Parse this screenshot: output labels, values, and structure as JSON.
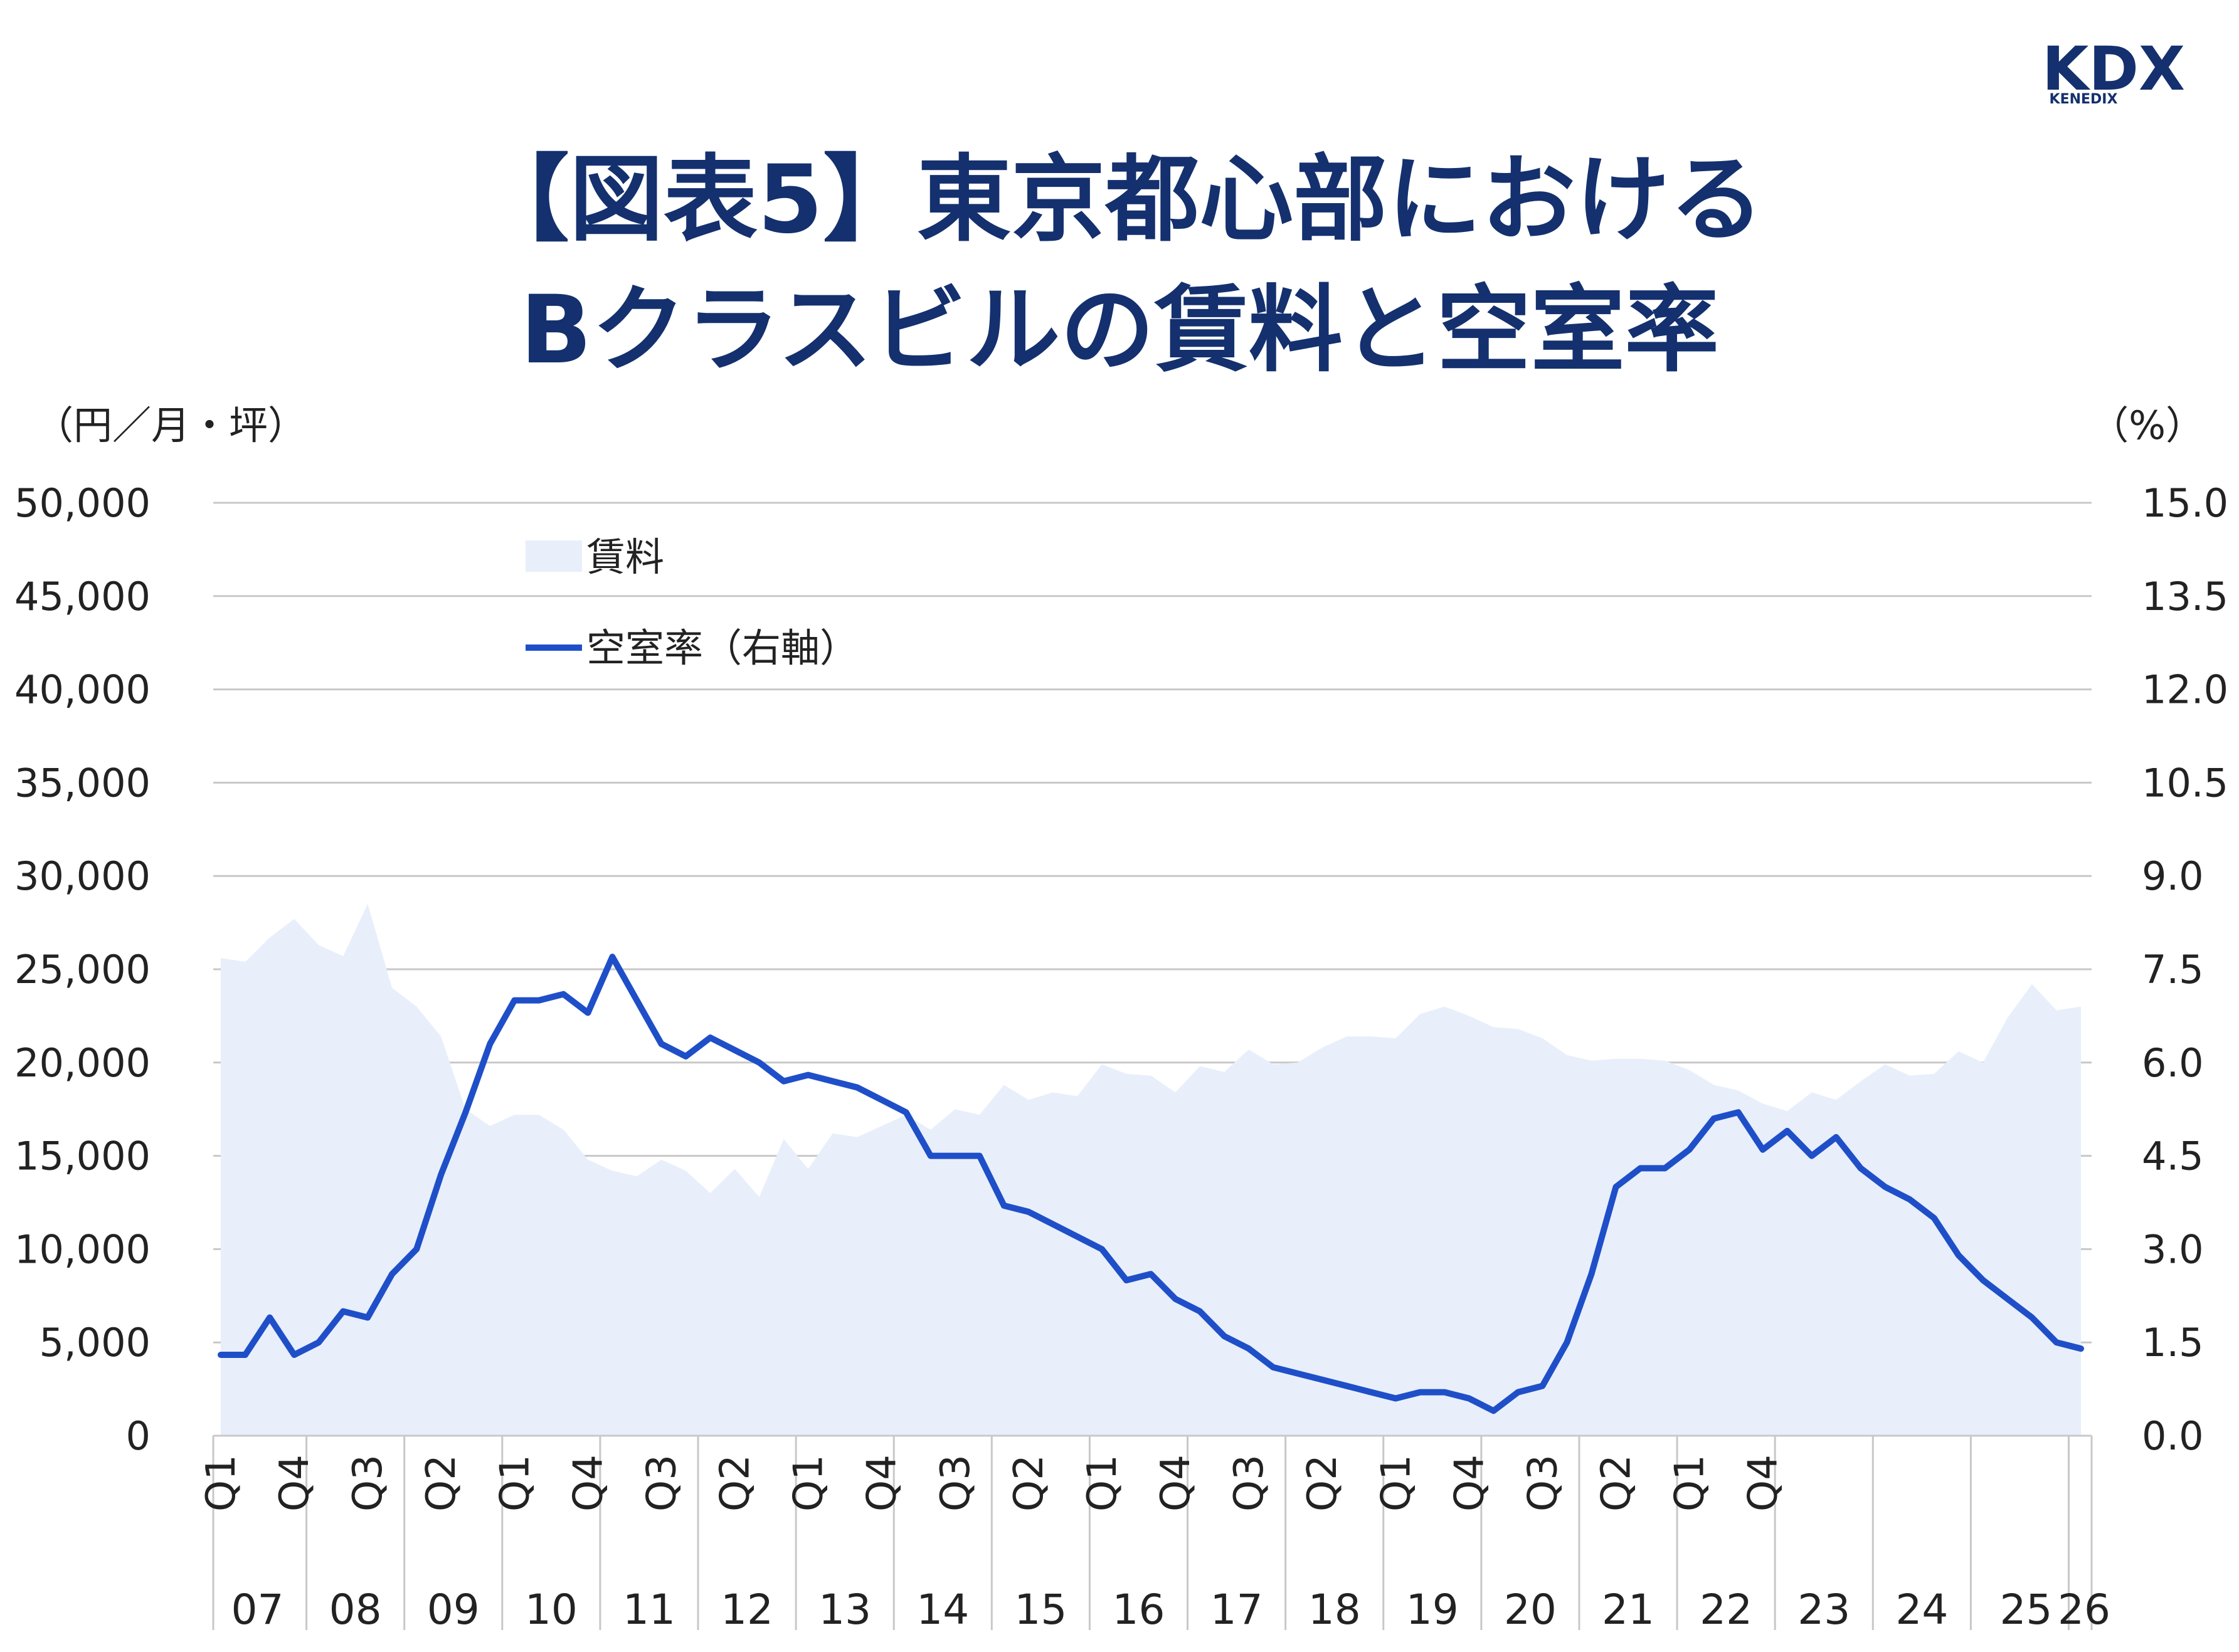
{
  "brand": {
    "logo": "KDX",
    "sub": "KENEDIX"
  },
  "title_lines": [
    "【図表5】東京都心部における",
    "Bクラスビルの賃料と空室率"
  ],
  "left_unit": "（円／月・坪）",
  "right_unit": "（%）",
  "colors": {
    "title": "#14306e",
    "rent_fill": "#e8effb",
    "vacancy_line": "#1f4fc8",
    "grid": "#c8c8c8"
  },
  "chart_data": {
    "type": "area+line",
    "y_left": {
      "range": [
        0,
        50000
      ],
      "ticks": [
        "0",
        "5,000",
        "10,000",
        "15,000",
        "20,000",
        "25,000",
        "30,000",
        "35,000",
        "40,000",
        "45,000",
        "50,000"
      ]
    },
    "y_right": {
      "range": [
        0,
        15
      ],
      "ticks": [
        "0.0",
        "1.5",
        "3.0",
        "4.5",
        "6.0",
        "7.5",
        "9.0",
        "10.5",
        "12.0",
        "13.5",
        "15.0"
      ]
    },
    "x_quarter_labels": [
      "Q1",
      "Q4",
      "Q3",
      "Q2",
      "Q1",
      "Q4",
      "Q3",
      "Q2",
      "Q1",
      "Q4",
      "Q3",
      "Q2",
      "Q1",
      "Q4",
      "Q3",
      "Q2",
      "Q1",
      "Q4",
      "Q3",
      "Q2",
      "Q1",
      "Q4"
    ],
    "x_year_labels": [
      "07",
      "08",
      "09",
      "10",
      "11",
      "12",
      "13",
      "14",
      "15",
      "16",
      "17",
      "18",
      "19",
      "20",
      "21",
      "22",
      "23",
      "24",
      "25",
      "26"
    ],
    "legend": [
      {
        "label": "賃料",
        "kind": "area"
      },
      {
        "label": "空室率（右軸）",
        "kind": "line"
      }
    ],
    "series": [
      {
        "name": "賃料",
        "axis": "left",
        "values": [
          25600,
          25400,
          26700,
          27700,
          26300,
          25700,
          28500,
          24000,
          23000,
          21400,
          17500,
          16600,
          17200,
          17200,
          16400,
          14800,
          14200,
          13900,
          14800,
          14200,
          13000,
          14300,
          12800,
          15900,
          14300,
          16200,
          16000,
          16600,
          17200,
          16400,
          17500,
          17200,
          18800,
          18000,
          18400,
          18200,
          19900,
          19400,
          19300,
          18400,
          19800,
          19500,
          20700,
          19900,
          20000,
          20800,
          21400,
          21400,
          21300,
          22600,
          23000,
          22500,
          21900,
          21800,
          21300,
          20400,
          20100,
          20200,
          20200,
          20100,
          19600,
          18800,
          18500,
          17800,
          17400,
          18400,
          18000,
          19000,
          19900,
          19300,
          19400,
          20600,
          20000,
          22400,
          24200,
          22800,
          23000
        ]
      },
      {
        "name": "空室率（右軸）",
        "axis": "right",
        "values": [
          1.3,
          1.3,
          1.9,
          1.3,
          1.5,
          2.0,
          1.9,
          2.6,
          3.0,
          4.2,
          5.2,
          6.3,
          7.0,
          7.0,
          7.1,
          6.8,
          7.7,
          7.0,
          6.3,
          6.1,
          6.4,
          6.2,
          6.0,
          5.7,
          5.8,
          5.7,
          5.6,
          5.4,
          5.2,
          4.5,
          4.5,
          4.5,
          3.7,
          3.6,
          3.4,
          3.2,
          3.0,
          2.5,
          2.6,
          2.2,
          2.0,
          1.6,
          1.4,
          1.1,
          1.0,
          0.9,
          0.8,
          0.7,
          0.6,
          0.7,
          0.7,
          0.6,
          0.4,
          0.7,
          0.8,
          1.5,
          2.6,
          4.0,
          4.3,
          4.3,
          4.6,
          5.1,
          5.2,
          4.6,
          4.9,
          4.5,
          4.8,
          4.3,
          4.0,
          3.8,
          3.5,
          2.9,
          2.5,
          2.2,
          1.9,
          1.5,
          1.4
        ]
      }
    ]
  }
}
